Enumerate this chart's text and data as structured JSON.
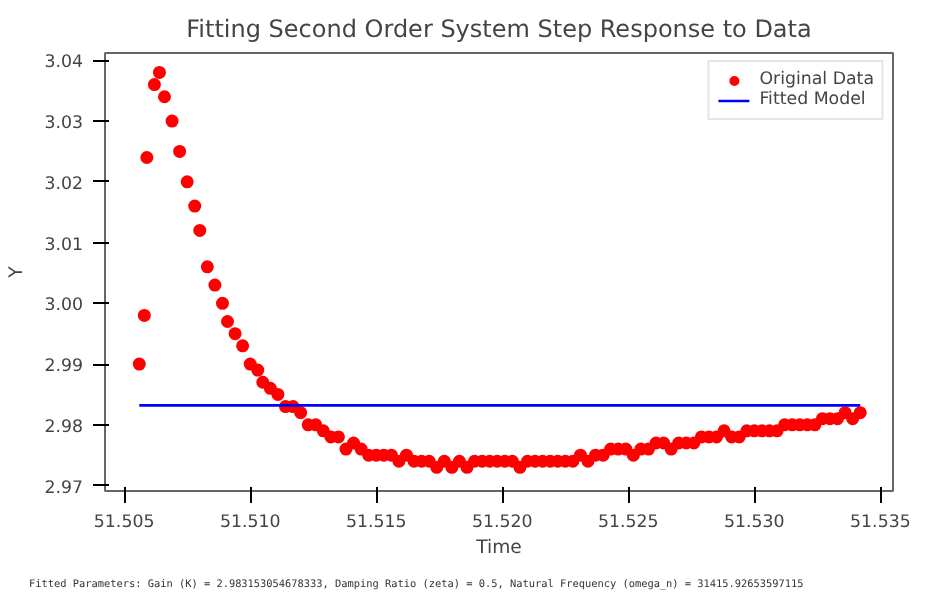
{
  "chart_data": {
    "type": "scatter",
    "title": "Fitting Second Order System Step Response to Data",
    "xlabel": "Time",
    "ylabel": "Y",
    "xlim": [
      51.50424,
      51.5355
    ],
    "ylim": [
      2.9691,
      3.0412
    ],
    "xticks": [
      {
        "value": 51.505,
        "label": "51.505"
      },
      {
        "value": 51.51,
        "label": "51.510"
      },
      {
        "value": 51.515,
        "label": "51.515"
      },
      {
        "value": 51.52,
        "label": "51.520"
      },
      {
        "value": 51.525,
        "label": "51.525"
      },
      {
        "value": 51.53,
        "label": "51.530"
      },
      {
        "value": 51.535,
        "label": "51.535"
      }
    ],
    "yticks": [
      {
        "value": 2.97,
        "label": "2.97"
      },
      {
        "value": 2.98,
        "label": "2.98"
      },
      {
        "value": 2.99,
        "label": "2.99"
      },
      {
        "value": 3.0,
        "label": "3.00"
      },
      {
        "value": 3.01,
        "label": "3.01"
      },
      {
        "value": 3.02,
        "label": "3.02"
      },
      {
        "value": 3.03,
        "label": "3.03"
      },
      {
        "value": 3.04,
        "label": "3.04"
      }
    ],
    "grid": false,
    "legend": "top right",
    "series": [
      {
        "name": "Original Data",
        "marker": "circle",
        "color": "#ff0000",
        "x": [
          51.5056,
          51.5058,
          51.5059,
          51.5062,
          51.5064,
          51.5066,
          51.5069,
          51.5072,
          51.5075,
          51.5078,
          51.508,
          51.5083,
          51.5086,
          51.5089,
          51.5091,
          51.5094,
          51.5097,
          51.51,
          51.5103,
          51.5105,
          51.5108,
          51.5111,
          51.5114,
          51.5117,
          51.512,
          51.5123,
          51.5126,
          51.5129,
          51.5132,
          51.5135,
          51.5138,
          51.5141,
          51.5144,
          51.5147,
          51.515,
          51.5153,
          51.5156,
          51.5159,
          51.5162,
          51.5165,
          51.5168,
          51.5171,
          51.5174,
          51.5177,
          51.518,
          51.5183,
          51.5186,
          51.5189,
          51.5192,
          51.5195,
          51.5198,
          51.5201,
          51.5204,
          51.5207,
          51.521,
          51.5213,
          51.5216,
          51.5219,
          51.5222,
          51.5225,
          51.5228,
          51.5231,
          51.5234,
          51.5237,
          51.524,
          51.5243,
          51.5246,
          51.5249,
          51.5252,
          51.5255,
          51.5258,
          51.5261,
          51.5264,
          51.5267,
          51.527,
          51.5273,
          51.5276,
          51.5279,
          51.5282,
          51.5285,
          51.5288,
          51.5291,
          51.5294,
          51.5297,
          51.53,
          51.5303,
          51.5306,
          51.5309,
          51.5312,
          51.5315,
          51.5318,
          51.5321,
          51.5324,
          51.5327,
          51.533,
          51.5333,
          51.5336,
          51.5339,
          51.5342
        ],
        "values": [
          2.99,
          2.998,
          3.024,
          3.036,
          3.038,
          3.034,
          3.03,
          3.025,
          3.02,
          3.016,
          3.012,
          3.006,
          3.003,
          3.0,
          2.997,
          2.995,
          2.993,
          2.99,
          2.989,
          2.987,
          2.986,
          2.985,
          2.983,
          2.983,
          2.982,
          2.98,
          2.98,
          2.979,
          2.978,
          2.978,
          2.976,
          2.977,
          2.976,
          2.975,
          2.975,
          2.975,
          2.975,
          2.974,
          2.975,
          2.974,
          2.974,
          2.974,
          2.973,
          2.974,
          2.973,
          2.974,
          2.973,
          2.974,
          2.974,
          2.974,
          2.974,
          2.974,
          2.974,
          2.973,
          2.974,
          2.974,
          2.974,
          2.974,
          2.974,
          2.974,
          2.974,
          2.975,
          2.974,
          2.975,
          2.975,
          2.976,
          2.976,
          2.976,
          2.975,
          2.976,
          2.976,
          2.977,
          2.977,
          2.976,
          2.977,
          2.977,
          2.977,
          2.978,
          2.978,
          2.978,
          2.979,
          2.978,
          2.978,
          2.979,
          2.979,
          2.979,
          2.979,
          2.979,
          2.98,
          2.98,
          2.98,
          2.98,
          2.98,
          2.981,
          2.981,
          2.981,
          2.982,
          2.981,
          2.982
        ]
      },
      {
        "name": "Fitted Model",
        "type": "line",
        "color": "#0000ff",
        "x": [
          51.5056,
          51.5342
        ],
        "values": [
          2.9832,
          2.9832
        ]
      }
    ],
    "annotations": [
      "Fitted Parameters: Gain (K) = 2.983153054678333, Damping Ratio (zeta) = 0.5, Natural Frequency (omega_n) = 31415.92653597115"
    ]
  }
}
